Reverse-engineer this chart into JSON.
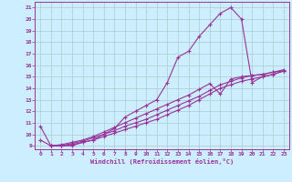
{
  "xlabel": "Windchill (Refroidissement éolien,°C)",
  "bg_color": "#cceeff",
  "grid_color": "#aacccc",
  "line_color": "#993399",
  "xlim": [
    -0.5,
    23.5
  ],
  "ylim": [
    8.7,
    21.5
  ],
  "xticks": [
    0,
    1,
    2,
    3,
    4,
    5,
    6,
    7,
    8,
    9,
    10,
    11,
    12,
    13,
    14,
    15,
    16,
    17,
    18,
    19,
    20,
    21,
    22,
    23
  ],
  "yticks": [
    9,
    10,
    11,
    12,
    13,
    14,
    15,
    16,
    17,
    18,
    19,
    20,
    21
  ],
  "curve1_x": [
    0,
    1,
    2,
    3,
    4,
    5,
    6,
    7,
    8,
    9,
    10,
    11,
    12,
    13,
    14,
    15,
    16,
    17,
    18,
    19,
    20,
    21,
    22,
    23
  ],
  "curve1_y": [
    10.7,
    9.0,
    9.0,
    9.0,
    9.3,
    9.5,
    10.0,
    10.5,
    11.5,
    12.0,
    12.5,
    13.0,
    14.5,
    16.7,
    17.2,
    18.5,
    19.5,
    20.5,
    21.0,
    20.0,
    14.5,
    15.0,
    15.2,
    15.5
  ],
  "curve2_x": [
    1,
    2,
    3,
    4,
    5,
    6,
    7,
    8,
    9,
    10,
    11,
    12,
    13,
    14,
    15,
    16,
    17,
    18,
    19,
    20,
    21,
    22,
    23
  ],
  "curve2_y": [
    9.0,
    9.0,
    9.1,
    9.3,
    9.5,
    9.8,
    10.1,
    10.4,
    10.7,
    11.0,
    11.3,
    11.7,
    12.1,
    12.5,
    13.0,
    13.5,
    14.0,
    14.3,
    14.6,
    14.8,
    15.0,
    15.2,
    15.5
  ],
  "curve3_x": [
    1,
    2,
    3,
    4,
    5,
    6,
    7,
    8,
    9,
    10,
    11,
    12,
    13,
    14,
    15,
    16,
    17,
    18,
    19,
    20,
    21,
    22,
    23
  ],
  "curve3_y": [
    9.0,
    9.0,
    9.2,
    9.4,
    9.7,
    10.0,
    10.3,
    10.7,
    11.0,
    11.3,
    11.7,
    12.1,
    12.5,
    12.9,
    13.3,
    13.8,
    14.3,
    14.6,
    14.9,
    15.1,
    15.2,
    15.4,
    15.6
  ],
  "curve4_x": [
    0,
    1,
    2,
    3,
    4,
    5,
    6,
    7,
    8,
    9,
    10,
    11,
    12,
    13,
    14,
    15,
    16,
    17,
    18,
    19,
    20,
    21,
    22,
    23
  ],
  "curve4_y": [
    9.5,
    9.0,
    9.1,
    9.3,
    9.5,
    9.8,
    10.2,
    10.6,
    11.0,
    11.4,
    11.8,
    12.2,
    12.6,
    13.0,
    13.4,
    13.9,
    14.4,
    13.5,
    14.8,
    15.0,
    15.1,
    15.2,
    15.4,
    15.5
  ]
}
